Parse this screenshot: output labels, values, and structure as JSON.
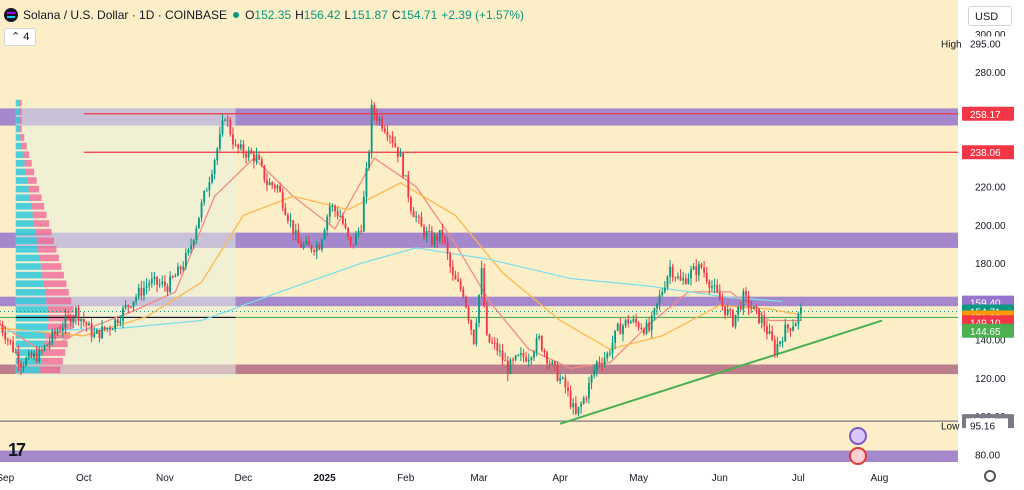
{
  "header": {
    "title": "Solana / U.S. Dollar · 1D · COINBASE",
    "open_key": "O",
    "open": "152.35",
    "high_key": "H",
    "high": "156.42",
    "low_key": "L",
    "low": "151.87",
    "close_key": "C",
    "close": "154.71",
    "change": "+2.39 (+1.57%)"
  },
  "indicator_toggle": "4",
  "currency": "USD",
  "colors": {
    "background": "#fcefc8",
    "up": "#089981",
    "down": "#f23645",
    "zone": "#9575cd",
    "zone_dark": "#b06a83",
    "green_line": "#4caf50",
    "red_line": "#f23645"
  },
  "icons": [
    "tradingview-logo-icon",
    "settings-gear-icon",
    "event-flash-icon",
    "event-flag-icon"
  ],
  "chart_data": {
    "type": "candlestick",
    "symbol": "SOLUSD",
    "ylim": [
      76,
      302
    ],
    "y_ticks": [
      80,
      100,
      120,
      140,
      160,
      180,
      200,
      220,
      240,
      260,
      280,
      300
    ],
    "y_tick_labels": [
      "80.00",
      "100.00",
      "120.00",
      "140.00",
      "160.00",
      "180.00",
      "200.00",
      "220.00",
      "240.00",
      "260.00",
      "280.00",
      "300.00"
    ],
    "x_labels": [
      {
        "date": "2024-09-01",
        "label": "Sep"
      },
      {
        "date": "2024-10-01",
        "label": "Oct"
      },
      {
        "date": "2024-11-01",
        "label": "Nov"
      },
      {
        "date": "2024-12-01",
        "label": "Dec"
      },
      {
        "date": "2025-01-01",
        "label": "2025"
      },
      {
        "date": "2025-02-01",
        "label": "Feb"
      },
      {
        "date": "2025-03-01",
        "label": "Mar"
      },
      {
        "date": "2025-04-01",
        "label": "Apr"
      },
      {
        "date": "2025-05-01",
        "label": "May"
      },
      {
        "date": "2025-06-01",
        "label": "Jun"
      },
      {
        "date": "2025-07-01",
        "label": "Jul"
      },
      {
        "date": "2025-08-01",
        "label": "Aug"
      }
    ],
    "x_range": [
      "2024-08-30",
      "2025-08-31"
    ],
    "grid": false,
    "zones": [
      {
        "from": 252,
        "to": 261,
        "color": "#9575cd"
      },
      {
        "from": 188,
        "to": 196,
        "color": "#9575cd"
      },
      {
        "from": 157.5,
        "to": 162.5,
        "color": "#9575cd"
      },
      {
        "from": 122,
        "to": 127,
        "color": "#b06a83"
      },
      {
        "from": 76,
        "to": 82,
        "color": "#9575cd"
      }
    ],
    "horizontal_lines": [
      {
        "value": 258.17,
        "color": "#f23645",
        "from": "2024-10-01"
      },
      {
        "value": 238.06,
        "color": "#f23645",
        "from": "2024-10-01"
      },
      {
        "value": 151.62,
        "color": "#4caf50"
      },
      {
        "value": 151.62,
        "color": "#131722",
        "from": "2024-09-05",
        "to": "2024-11-28"
      },
      {
        "value": 97.37,
        "color": "#787b86"
      }
    ],
    "trendline": {
      "start": [
        "2025-04-01",
        96
      ],
      "end": [
        "2025-08-02",
        150
      ],
      "color": "#4caf50"
    },
    "volume_profile_range": [
      "2024-09-05",
      "2024-11-28"
    ],
    "price_labels": [
      {
        "value": 295.0,
        "text": "295.00",
        "tag": "High",
        "style": "plain"
      },
      {
        "value": 258.17,
        "text": "258.17",
        "color": "#f23645"
      },
      {
        "value": 238.06,
        "text": "238.06",
        "color": "#f23645"
      },
      {
        "value": 159.4,
        "text": "159.40",
        "color": "#9575cd"
      },
      {
        "value": 154.71,
        "text": "154.71",
        "color": "#089981",
        "sub": "12:49:10"
      },
      {
        "value": 151.62,
        "text": "151.62",
        "color": "#ff9800"
      },
      {
        "value": 149.1,
        "text": "149.10",
        "color": "#f23645"
      },
      {
        "value": 144.65,
        "text": "144.65",
        "color": "#4caf50"
      },
      {
        "value": 97.37,
        "text": "97.37",
        "color": "#787b86"
      },
      {
        "value": 95.16,
        "text": "95.16",
        "tag": "Low",
        "style": "plain"
      }
    ],
    "close_path": [
      [
        "2024-08-30",
        148
      ],
      [
        "2024-09-07",
        128
      ],
      [
        "2024-09-14",
        132
      ],
      [
        "2024-09-21",
        145
      ],
      [
        "2024-09-28",
        155
      ],
      [
        "2024-10-05",
        142
      ],
      [
        "2024-10-12",
        148
      ],
      [
        "2024-10-19",
        160
      ],
      [
        "2024-10-26",
        170
      ],
      [
        "2024-11-02",
        168
      ],
      [
        "2024-11-06",
        175
      ],
      [
        "2024-11-10",
        185
      ],
      [
        "2024-11-14",
        205
      ],
      [
        "2024-11-18",
        225
      ],
      [
        "2024-11-22",
        245
      ],
      [
        "2024-11-24",
        258
      ],
      [
        "2024-11-28",
        240
      ],
      [
        "2024-12-02",
        238
      ],
      [
        "2024-12-06",
        235
      ],
      [
        "2024-12-10",
        222
      ],
      [
        "2024-12-14",
        220
      ],
      [
        "2024-12-18",
        205
      ],
      [
        "2024-12-22",
        190
      ],
      [
        "2024-12-26",
        188
      ],
      [
        "2024-12-30",
        190
      ],
      [
        "2025-01-03",
        210
      ],
      [
        "2025-01-07",
        205
      ],
      [
        "2025-01-11",
        188
      ],
      [
        "2025-01-15",
        200
      ],
      [
        "2025-01-18",
        240
      ],
      [
        "2025-01-19",
        260
      ],
      [
        "2025-01-22",
        255
      ],
      [
        "2025-01-26",
        248
      ],
      [
        "2025-01-30",
        235
      ],
      [
        "2025-02-03",
        210
      ],
      [
        "2025-02-07",
        198
      ],
      [
        "2025-02-11",
        192
      ],
      [
        "2025-02-15",
        195
      ],
      [
        "2025-02-19",
        172
      ],
      [
        "2025-02-23",
        165
      ],
      [
        "2025-02-27",
        140
      ],
      [
        "2025-03-02",
        175
      ],
      [
        "2025-03-04",
        140
      ],
      [
        "2025-03-08",
        135
      ],
      [
        "2025-03-12",
        125
      ],
      [
        "2025-03-16",
        130
      ],
      [
        "2025-03-20",
        132
      ],
      [
        "2025-03-24",
        140
      ],
      [
        "2025-03-28",
        128
      ],
      [
        "2025-04-03",
        115
      ],
      [
        "2025-04-07",
        100
      ],
      [
        "2025-04-11",
        112
      ],
      [
        "2025-04-15",
        128
      ],
      [
        "2025-04-19",
        132
      ],
      [
        "2025-04-23",
        145
      ],
      [
        "2025-04-27",
        150
      ],
      [
        "2025-05-01",
        148
      ],
      [
        "2025-05-05",
        145
      ],
      [
        "2025-05-09",
        162
      ],
      [
        "2025-05-13",
        178
      ],
      [
        "2025-05-17",
        170
      ],
      [
        "2025-05-21",
        175
      ],
      [
        "2025-05-25",
        178
      ],
      [
        "2025-05-29",
        168
      ],
      [
        "2025-06-02",
        158
      ],
      [
        "2025-06-06",
        150
      ],
      [
        "2025-06-10",
        162
      ],
      [
        "2025-06-14",
        155
      ],
      [
        "2025-06-18",
        148
      ],
      [
        "2025-06-22",
        135
      ],
      [
        "2025-06-26",
        145
      ],
      [
        "2025-06-30",
        150
      ],
      [
        "2025-07-02",
        154.71
      ]
    ],
    "moving_averages": [
      {
        "color": "#f28b82",
        "points": [
          [
            "2024-08-30",
            148
          ],
          [
            "2024-09-15",
            134
          ],
          [
            "2024-10-01",
            145
          ],
          [
            "2024-10-20",
            155
          ],
          [
            "2024-11-05",
            165
          ],
          [
            "2024-11-20",
            215
          ],
          [
            "2024-12-05",
            235
          ],
          [
            "2024-12-20",
            215
          ],
          [
            "2025-01-05",
            198
          ],
          [
            "2025-01-20",
            235
          ],
          [
            "2025-02-05",
            220
          ],
          [
            "2025-02-20",
            190
          ],
          [
            "2025-03-05",
            160
          ],
          [
            "2025-03-20",
            135
          ],
          [
            "2025-04-05",
            125
          ],
          [
            "2025-04-20",
            128
          ],
          [
            "2025-05-05",
            148
          ],
          [
            "2025-05-20",
            165
          ],
          [
            "2025-06-05",
            165
          ],
          [
            "2025-06-20",
            150
          ],
          [
            "2025-07-02",
            150
          ]
        ]
      },
      {
        "color": "#ffb74d",
        "points": [
          [
            "2024-08-30",
            146
          ],
          [
            "2024-10-01",
            142
          ],
          [
            "2024-10-25",
            152
          ],
          [
            "2024-11-15",
            170
          ],
          [
            "2024-12-01",
            205
          ],
          [
            "2024-12-20",
            215
          ],
          [
            "2025-01-10",
            208
          ],
          [
            "2025-01-30",
            222
          ],
          [
            "2025-02-20",
            205
          ],
          [
            "2025-03-10",
            175
          ],
          [
            "2025-04-01",
            150
          ],
          [
            "2025-04-20",
            135
          ],
          [
            "2025-05-10",
            142
          ],
          [
            "2025-06-01",
            158
          ],
          [
            "2025-06-20",
            156
          ],
          [
            "2025-07-02",
            153
          ]
        ]
      },
      {
        "color": "#80deea",
        "points": [
          [
            "2024-08-30",
            144
          ],
          [
            "2024-10-15",
            146
          ],
          [
            "2024-11-15",
            150
          ],
          [
            "2024-12-15",
            165
          ],
          [
            "2025-01-15",
            180
          ],
          [
            "2025-02-05",
            188
          ],
          [
            "2025-03-05",
            182
          ],
          [
            "2025-04-05",
            172
          ],
          [
            "2025-05-05",
            168
          ],
          [
            "2025-06-05",
            162
          ],
          [
            "2025-06-25",
            160
          ]
        ]
      }
    ]
  }
}
